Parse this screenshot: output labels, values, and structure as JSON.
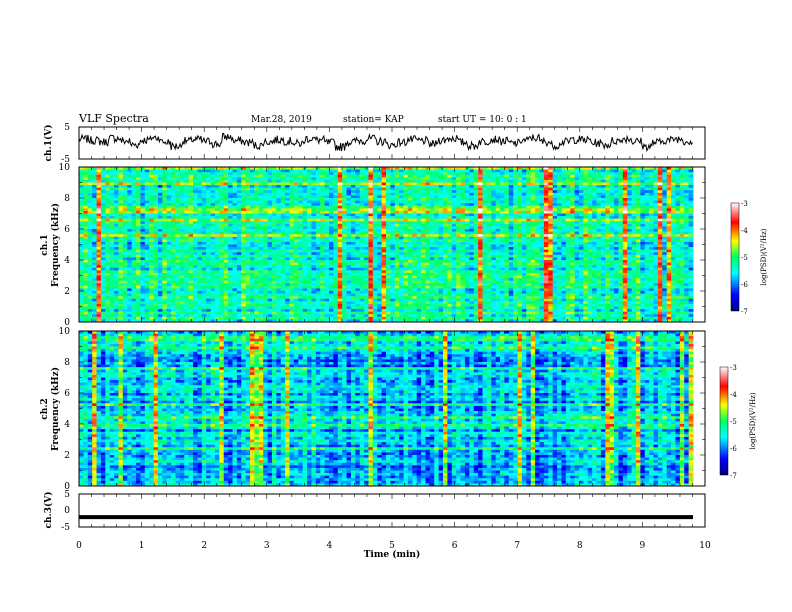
{
  "header": {
    "title": "VLF Spectra",
    "date": "Mar.28, 2019",
    "station": "station= KAP",
    "start_ut": "start UT =   10: 0  : 1"
  },
  "chart_data": [
    {
      "type": "line",
      "panel": "ch1-waveform",
      "ylabel": "ch.1(V)",
      "ylim": [
        -5,
        5
      ],
      "yticks": [
        "5",
        "-5"
      ],
      "xlim": [
        0,
        10
      ],
      "color": "#000000",
      "series": [
        {
          "values": [
            1.2,
            0.8,
            0.4,
            1.5,
            0.6,
            -0.5,
            0.9,
            1.7,
            0.3,
            -1.0,
            0.6,
            1.1,
            0.5,
            -0.3,
            1.9,
            0.7,
            0.2,
            -0.8,
            0.4,
            1.0,
            0.6,
            -0.2,
            1.4,
            0.9,
            0.1,
            -1.2,
            0.3,
            0.8,
            1.3,
            0.5,
            -0.6,
            0.2,
            1.0,
            0.7,
            -0.4,
            0.9,
            1.5,
            0.2,
            -0.9,
            0.5,
            1.2,
            0.6,
            -0.1,
            0.8,
            1.6,
            0.4,
            -0.7,
            0.3,
            1.1,
            0.9,
            0.0,
            -0.5,
            0.7,
            1.4,
            0.5,
            -1.1,
            0.2,
            0.9,
            1.3,
            0.6
          ]
        }
      ]
    },
    {
      "type": "heatmap",
      "panel": "ch1-spectrogram",
      "ylabel_line1": "ch.1",
      "ylabel_line2": "Frequency (kHz)",
      "ylim": [
        0,
        10
      ],
      "yticks": [
        "0",
        "2",
        "4",
        "6",
        "8",
        "10"
      ],
      "xlim": [
        0,
        10
      ],
      "colorbar": {
        "label": "log(PSD)(V²/Hz)",
        "min": -7,
        "max": -3,
        "ticks": [
          "-3",
          "-4",
          "-5",
          "-6",
          "-7"
        ]
      }
    },
    {
      "type": "heatmap",
      "panel": "ch2-spectrogram",
      "ylabel_line1": "ch.2",
      "ylabel_line2": "Frequency (kHz)",
      "ylim": [
        0,
        10
      ],
      "yticks": [
        "0",
        "2",
        "4",
        "6",
        "8",
        "10"
      ],
      "xlim": [
        0,
        10
      ],
      "colorbar": {
        "label": "log(PSD)(V²/Hz)",
        "min": -7,
        "max": -3,
        "ticks": [
          "-3",
          "-4",
          "-5",
          "-6",
          "-7"
        ]
      }
    },
    {
      "type": "line",
      "panel": "ch3-waveform",
      "ylabel": "ch.3(V)",
      "ylim": [
        -5,
        5
      ],
      "yticks": [
        "5",
        "0",
        "-5"
      ],
      "xlim": [
        0,
        10
      ],
      "xlabel": "Time (min)",
      "xticks": [
        "0",
        "1",
        "2",
        "3",
        "4",
        "5",
        "6",
        "7",
        "8",
        "9",
        "10"
      ],
      "color": "#000000",
      "series": [
        {
          "values": [
            -2,
            -2
          ]
        }
      ]
    }
  ]
}
